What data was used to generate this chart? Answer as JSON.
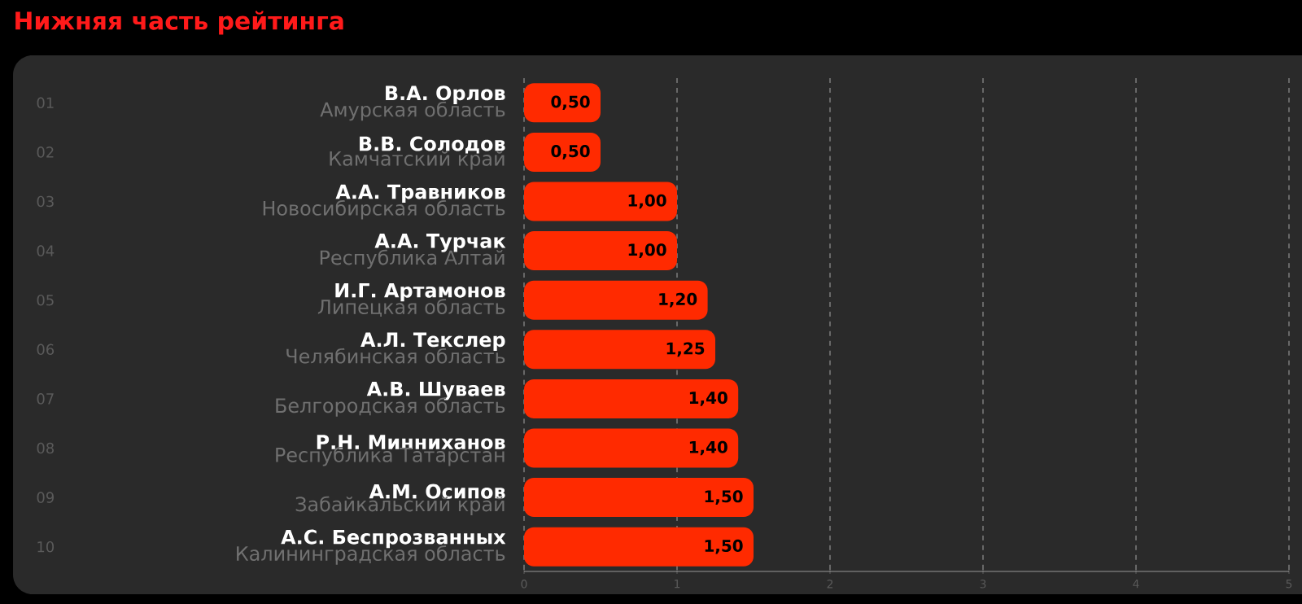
{
  "chart_data": {
    "type": "bar",
    "orientation": "horizontal",
    "title": "Нижняя часть рейтинга",
    "categories": [
      "В.А. Орлов",
      "В.В. Солодов",
      "А.А. Травников",
      "А.А. Турчак",
      "И.Г. Артамонов",
      "А.Л. Текслер",
      "А.В. Шуваев",
      "Р.Н. Минниханов",
      "А.М. Осипов",
      "А.С. Беспрозванных"
    ],
    "values": [
      0.5,
      0.5,
      1.0,
      1.0,
      1.2,
      1.25,
      1.4,
      1.4,
      1.5,
      1.5
    ],
    "value_labels": [
      "0,50",
      "0,50",
      "1,00",
      "1,00",
      "1,20",
      "1,25",
      "1,40",
      "1,40",
      "1,50",
      "1,50"
    ],
    "color": "#ff2a00",
    "xlim": [
      0,
      5
    ],
    "xticks": [
      0,
      1,
      2,
      3,
      4,
      5
    ],
    "grid": "x",
    "annotations": [
      "Амурская область",
      "Камчатский край",
      "Новосибирская область",
      "Республика Алтай",
      "Липецкая область",
      "Челябинская область",
      "Белгородская область",
      "Республика Татарстан",
      "Забайкальский край",
      "Калининградская область",
      "01",
      "02",
      "03",
      "04",
      "05",
      "06",
      "07",
      "08",
      "09",
      "10"
    ]
  }
}
